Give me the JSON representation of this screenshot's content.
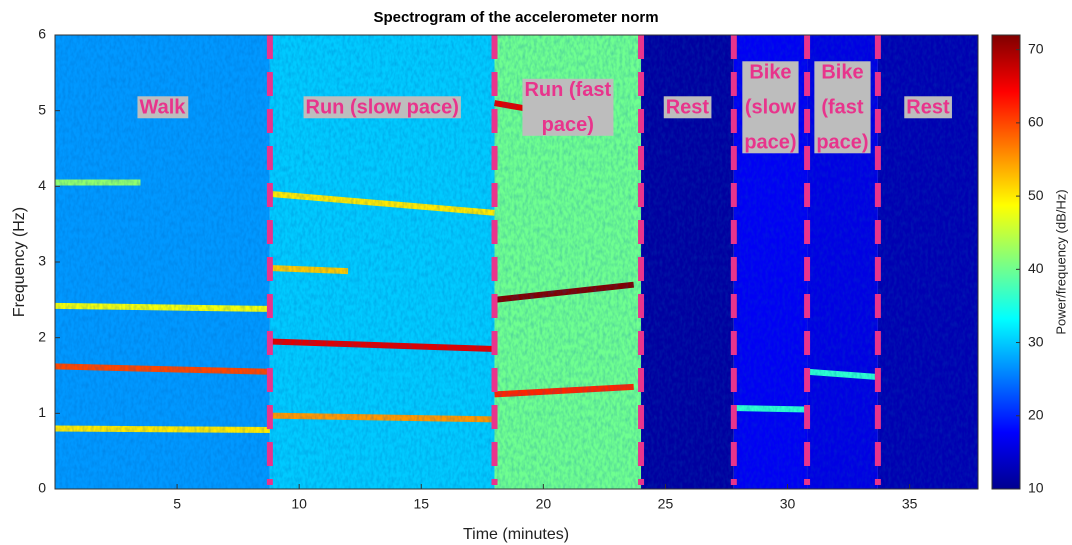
{
  "chart_data": {
    "type": "spectrogram",
    "title": "Spectrogram of the accelerometer norm",
    "x_label": "Time (minutes)",
    "y_label": "Frequency (Hz)",
    "colorbar_label": "Power/frequency (dB/Hz)",
    "xlim": [
      0,
      37.8
    ],
    "xticks": [
      5,
      10,
      15,
      20,
      25,
      30,
      35
    ],
    "ylim": [
      0,
      6
    ],
    "yticks": [
      0,
      1,
      2,
      3,
      4,
      5,
      6
    ],
    "clim": [
      10,
      72
    ],
    "cticks": [
      10,
      20,
      30,
      40,
      50,
      60,
      70
    ],
    "colormap": "jet",
    "boundary_color": "#e8348c",
    "boundaries": [
      8.8,
      18,
      24,
      27.8,
      30.8,
      33.7
    ],
    "regions": [
      {
        "x": [
          0,
          8.8
        ],
        "level": 27,
        "label": [
          "Walk"
        ]
      },
      {
        "x": [
          8.8,
          18
        ],
        "level": 30,
        "label": [
          "Run (slow pace)"
        ]
      },
      {
        "x": [
          18,
          24
        ],
        "level": 40,
        "label": [
          "Run (fast",
          "pace)"
        ]
      },
      {
        "x": [
          24,
          27.8
        ],
        "level": 12,
        "label": [
          "Rest"
        ]
      },
      {
        "x": [
          27.8,
          30.8
        ],
        "level": 17,
        "label": [
          "Bike",
          "(slow",
          "pace)"
        ]
      },
      {
        "x": [
          30.8,
          33.7
        ],
        "level": 16,
        "label": [
          "Bike",
          "(fast",
          "pace)"
        ]
      },
      {
        "x": [
          33.7,
          37.8
        ],
        "level": 13,
        "label": [
          "Rest"
        ]
      }
    ],
    "bands": [
      {
        "x": [
          0,
          8.8
        ],
        "freq": [
          0.8,
          0.78
        ],
        "power": 50
      },
      {
        "x": [
          0,
          8.8
        ],
        "freq": [
          1.62,
          1.55
        ],
        "power": 60
      },
      {
        "x": [
          0,
          8.8
        ],
        "freq": [
          2.42,
          2.38
        ],
        "power": 48
      },
      {
        "x": [
          0,
          3.5
        ],
        "freq": [
          4.05,
          4.05
        ],
        "power": 42
      },
      {
        "x": [
          8.8,
          18
        ],
        "freq": [
          0.97,
          0.92
        ],
        "power": 55
      },
      {
        "x": [
          8.8,
          18
        ],
        "freq": [
          1.95,
          1.85
        ],
        "power": 66
      },
      {
        "x": [
          8.8,
          12
        ],
        "freq": [
          2.92,
          2.88
        ],
        "power": 52
      },
      {
        "x": [
          8.8,
          18
        ],
        "freq": [
          3.9,
          3.65
        ],
        "power": 50
      },
      {
        "x": [
          18,
          23.7
        ],
        "freq": [
          1.25,
          1.35
        ],
        "power": 62
      },
      {
        "x": [
          18,
          23.7
        ],
        "freq": [
          2.5,
          2.7
        ],
        "power": 72
      },
      {
        "x": [
          18,
          19.8
        ],
        "freq": [
          5.1,
          5.0
        ],
        "power": 66
      },
      {
        "x": [
          27.8,
          30.8
        ],
        "freq": [
          1.07,
          1.05
        ],
        "power": 36
      },
      {
        "x": [
          30.8,
          33.7
        ],
        "freq": [
          1.55,
          1.48
        ],
        "power": 36
      }
    ]
  }
}
